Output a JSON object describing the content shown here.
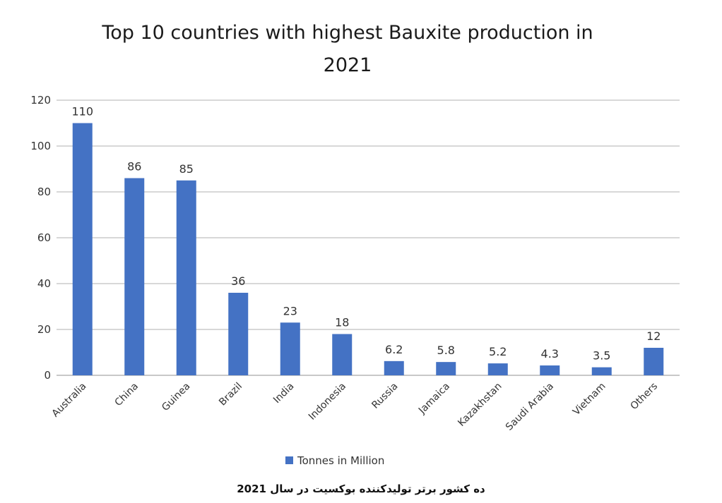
{
  "chart_data": {
    "type": "bar",
    "title_lines": [
      "Top 10 countries with highest Bauxite production in",
      "2021"
    ],
    "categories": [
      "Australia",
      "China",
      "Guinea",
      "Brazil",
      "India",
      "Indonesia",
      "Russia",
      "Jamaica",
      "Kazakhstan",
      "Saudi Arabia",
      "Vietnam",
      "Others"
    ],
    "series": [
      {
        "name": "Tonnes in Million",
        "values": [
          110,
          86,
          85,
          36,
          23,
          18,
          6.2,
          5.8,
          5.2,
          4.3,
          3.5,
          12
        ],
        "color": "#4472c4"
      }
    ],
    "data_labels": [
      "110",
      "86",
      "85",
      "36",
      "23",
      "18",
      "6.2",
      "5.8",
      "5.2",
      "4.3",
      "3.5",
      "12"
    ],
    "ylim": [
      0,
      120
    ],
    "yticks": [
      0,
      20,
      40,
      60,
      80,
      100,
      120
    ],
    "grid": true,
    "legend": "bottom",
    "xlabel": "",
    "ylabel": ""
  },
  "caption": "ده کشور برتر تولیدکننده بوکسیت در سال 2021"
}
